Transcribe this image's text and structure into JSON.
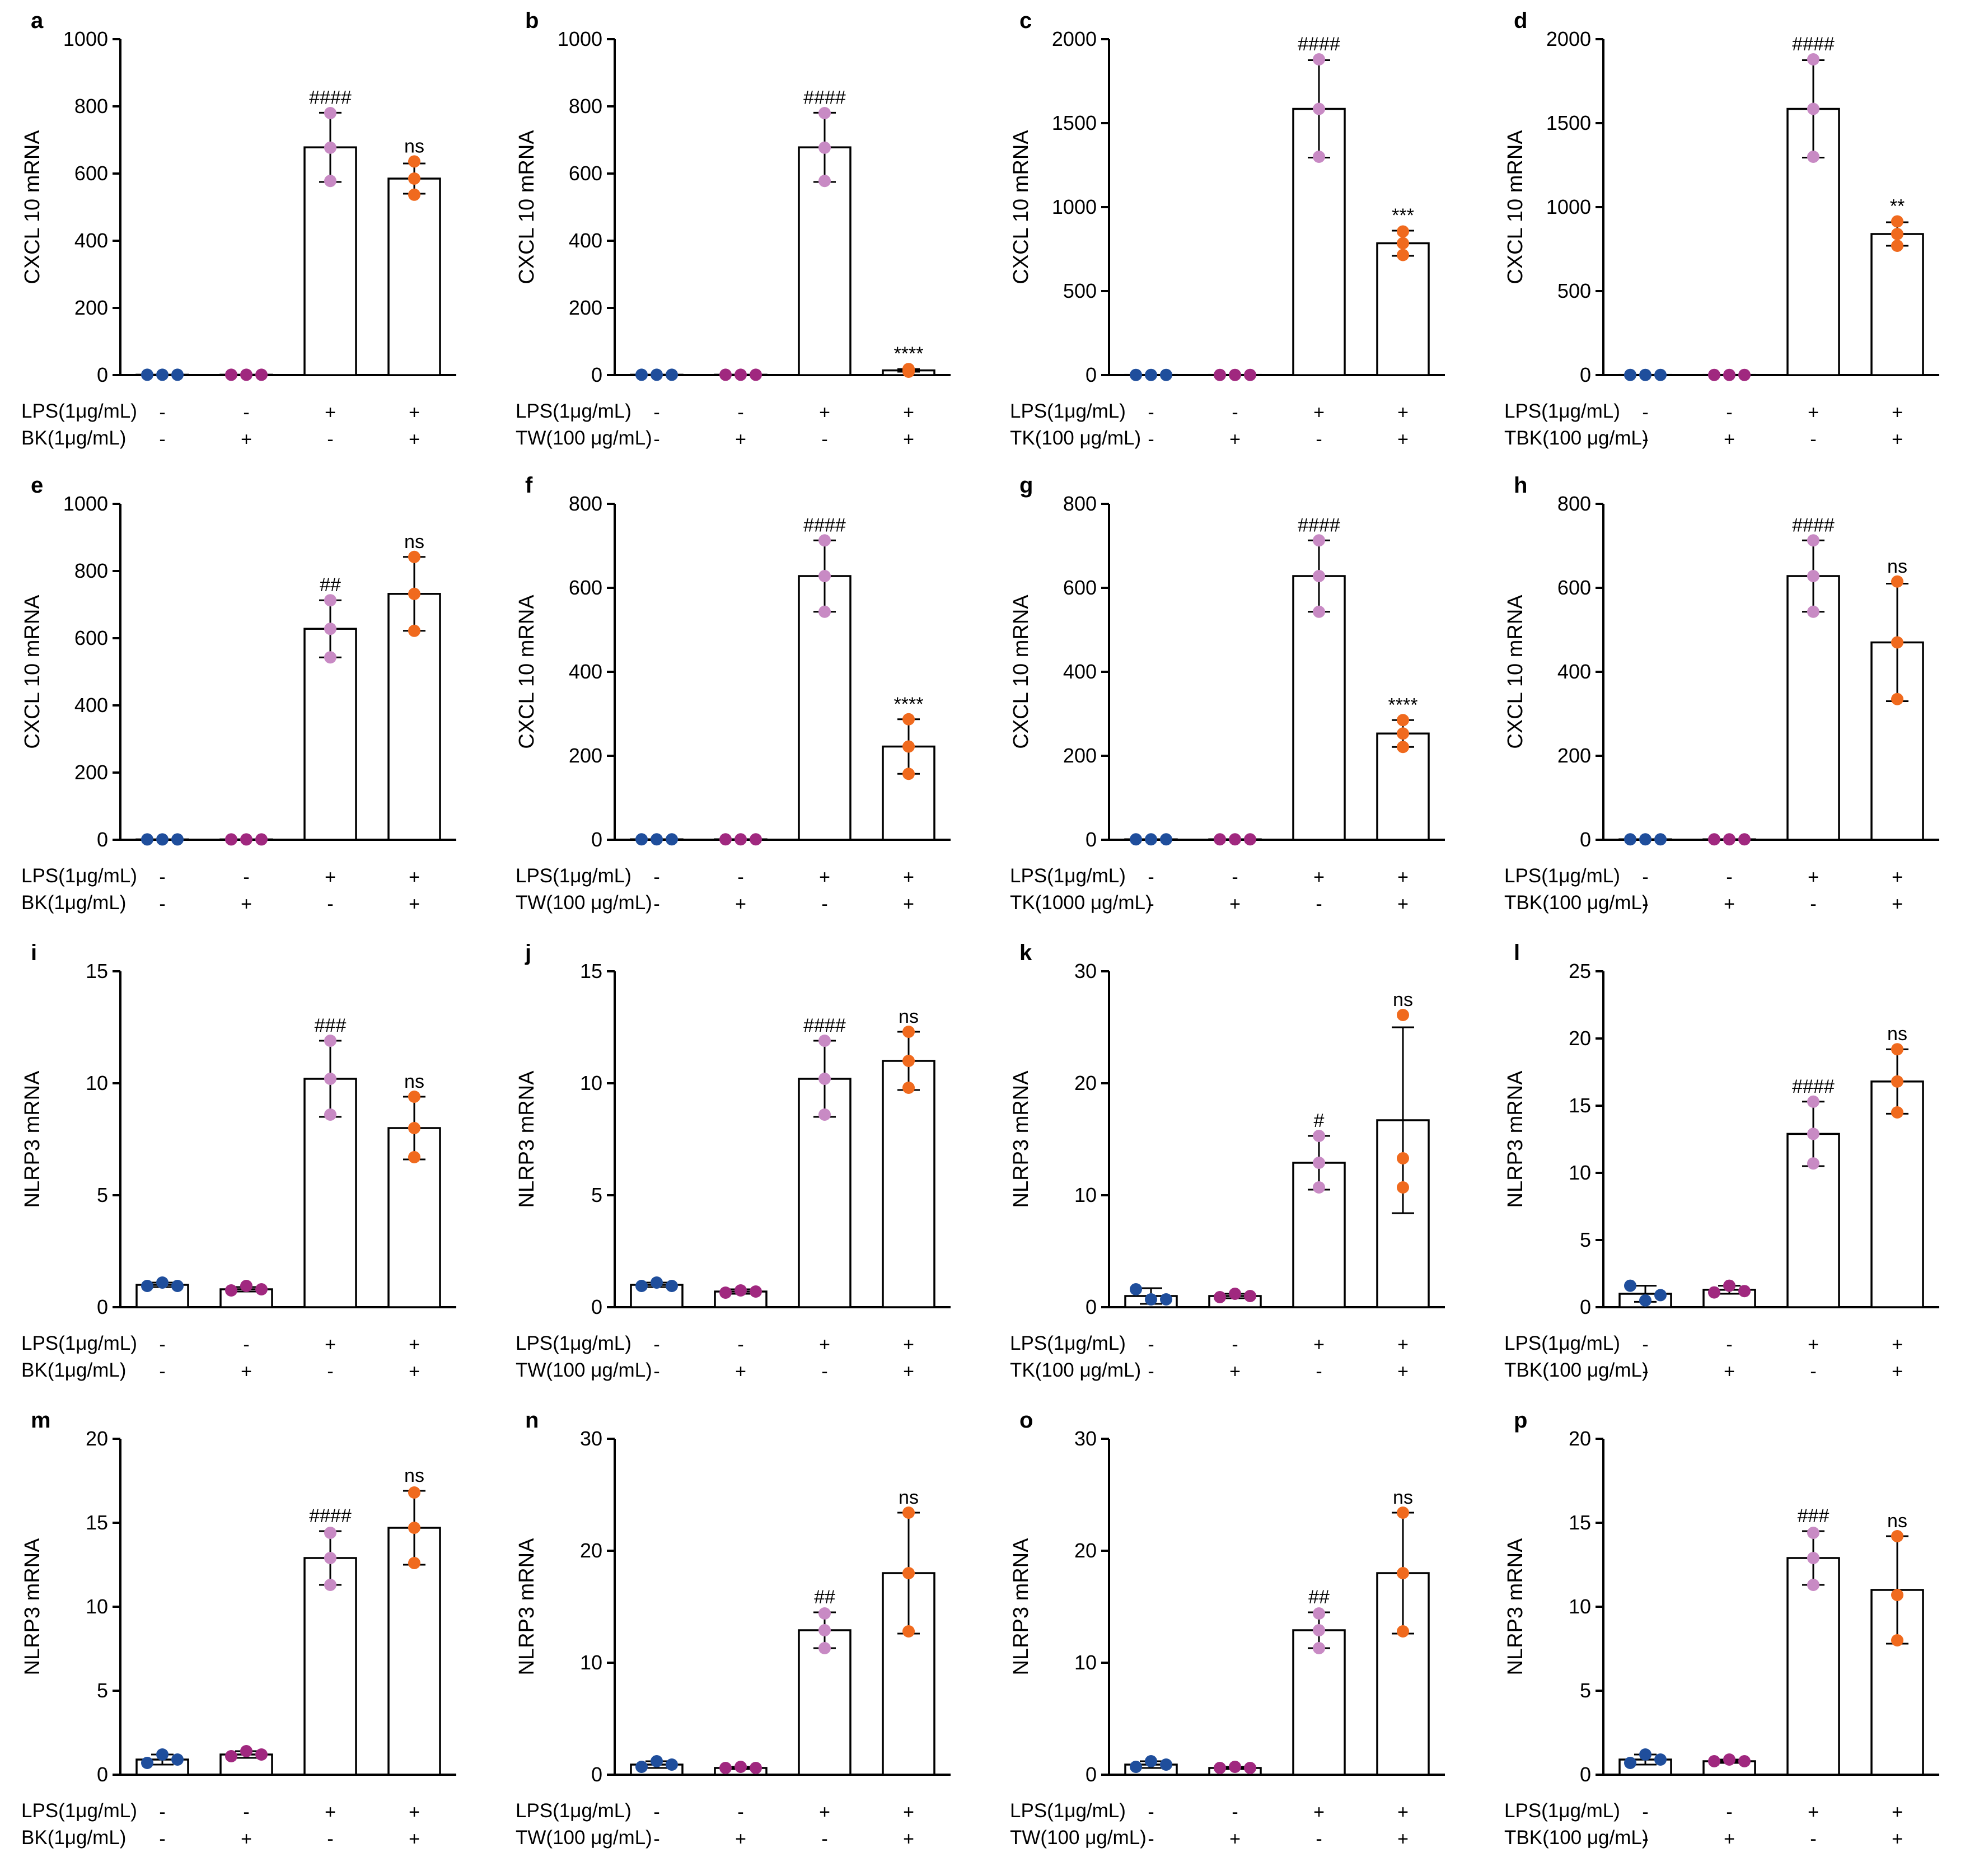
{
  "colors": {
    "ctrl": "#1f4e9c",
    "drug": "#a0287f",
    "lps": "#c88ac4",
    "combo": "#f06a1e",
    "axis": "#000000"
  },
  "chart_data": [
    {
      "letter": "a",
      "type": "bar",
      "ylabel": "CXCL 10  mRNA",
      "ylim": [
        0,
        1000
      ],
      "yticks": [
        0,
        200,
        400,
        600,
        800,
        1000
      ],
      "treatment": "BK(1μg/mL)",
      "lps_label": "LPS(1μg/mL)",
      "lps_signs": [
        "-",
        "-",
        "+",
        "+"
      ],
      "treat_signs": [
        "-",
        "+",
        "-",
        "+"
      ],
      "values": [
        1,
        1,
        678,
        585
      ],
      "errors": [
        0,
        0,
        103,
        45
      ],
      "points": [
        [
          1,
          1,
          1
        ],
        [
          1,
          1,
          1
        ],
        [
          780,
          677,
          578
        ],
        [
          636,
          585,
          537
        ]
      ],
      "significance": [
        "",
        "",
        "####",
        "ns"
      ]
    },
    {
      "letter": "b",
      "type": "bar",
      "ylabel": "CXCL 10  mRNA",
      "ylim": [
        0,
        1000
      ],
      "yticks": [
        0,
        200,
        400,
        600,
        800,
        1000
      ],
      "treatment": "TW(100 μg/mL)",
      "lps_label": "LPS(1μg/mL)",
      "lps_signs": [
        "-",
        "-",
        "+",
        "+"
      ],
      "treat_signs": [
        "-",
        "+",
        "-",
        "+"
      ],
      "values": [
        1,
        1,
        678,
        14
      ],
      "errors": [
        0,
        0,
        103,
        4
      ],
      "points": [
        [
          1,
          1,
          1
        ],
        [
          1,
          1,
          1
        ],
        [
          780,
          677,
          578
        ],
        [
          18,
          14,
          10
        ]
      ],
      "significance": [
        "",
        "",
        "####",
        "****"
      ]
    },
    {
      "letter": "c",
      "type": "bar",
      "ylabel": "CXCL 10  mRNA",
      "ylim": [
        0,
        2000
      ],
      "yticks": [
        0,
        500,
        1000,
        1500,
        2000
      ],
      "treatment": "TK(100 μg/mL)",
      "lps_label": "LPS(1μg/mL)",
      "lps_signs": [
        "-",
        "-",
        "+",
        "+"
      ],
      "treat_signs": [
        "-",
        "+",
        "-",
        "+"
      ],
      "values": [
        1,
        1,
        1585,
        785
      ],
      "errors": [
        0,
        0,
        290,
        75
      ],
      "points": [
        [
          1,
          1,
          1
        ],
        [
          1,
          1,
          1
        ],
        [
          1880,
          1585,
          1300
        ],
        [
          855,
          785,
          715
        ]
      ],
      "significance": [
        "",
        "",
        "####",
        "***"
      ]
    },
    {
      "letter": "d",
      "type": "bar",
      "ylabel": "CXCL 10  mRNA",
      "ylim": [
        0,
        2000
      ],
      "yticks": [
        0,
        500,
        1000,
        1500,
        2000
      ],
      "treatment": "TBK(100 μg/mL)",
      "lps_label": "LPS(1μg/mL)",
      "lps_signs": [
        "-",
        "-",
        "+",
        "+"
      ],
      "treat_signs": [
        "-",
        "+",
        "-",
        "+"
      ],
      "values": [
        1,
        1,
        1585,
        840
      ],
      "errors": [
        0,
        0,
        290,
        70
      ],
      "points": [
        [
          1,
          1,
          1
        ],
        [
          1,
          1,
          1
        ],
        [
          1880,
          1585,
          1300
        ],
        [
          915,
          840,
          770
        ]
      ],
      "significance": [
        "",
        "",
        "####",
        "**"
      ]
    },
    {
      "letter": "e",
      "type": "bar",
      "ylabel": "CXCL 10  mRNA",
      "ylim": [
        0,
        1000
      ],
      "yticks": [
        0,
        200,
        400,
        600,
        800,
        1000
      ],
      "treatment": "BK(1μg/mL)",
      "lps_label": "LPS(1μg/mL)",
      "lps_signs": [
        "-",
        "-",
        "+",
        "+"
      ],
      "treat_signs": [
        "-",
        "+",
        "-",
        "+"
      ],
      "values": [
        1,
        1,
        628,
        732
      ],
      "errors": [
        0,
        0,
        85,
        110
      ],
      "points": [
        [
          1,
          1,
          1
        ],
        [
          1,
          1,
          1
        ],
        [
          713,
          628,
          543
        ],
        [
          842,
          732,
          622
        ]
      ],
      "significance": [
        "",
        "",
        "##",
        "ns"
      ]
    },
    {
      "letter": "f",
      "type": "bar",
      "ylabel": "CXCL 10  mRNA",
      "ylim": [
        0,
        800
      ],
      "yticks": [
        0,
        200,
        400,
        600,
        800
      ],
      "treatment": "TW(100 μg/mL)",
      "lps_label": "LPS(1μg/mL)",
      "lps_signs": [
        "-",
        "-",
        "+",
        "+"
      ],
      "treat_signs": [
        "-",
        "+",
        "-",
        "+"
      ],
      "values": [
        1,
        1,
        628,
        222
      ],
      "errors": [
        0,
        0,
        85,
        65
      ],
      "points": [
        [
          1,
          1,
          1
        ],
        [
          1,
          1,
          1
        ],
        [
          713,
          628,
          543
        ],
        [
          287,
          222,
          157
        ]
      ],
      "significance": [
        "",
        "",
        "####",
        "****"
      ]
    },
    {
      "letter": "g",
      "type": "bar",
      "ylabel": "CXCL 10  mRNA",
      "ylim": [
        0,
        800
      ],
      "yticks": [
        0,
        200,
        400,
        600,
        800
      ],
      "treatment": "TK(1000 μg/mL)",
      "lps_label": "LPS(1μg/mL)",
      "lps_signs": [
        "-",
        "-",
        "+",
        "+"
      ],
      "treat_signs": [
        "-",
        "+",
        "-",
        "+"
      ],
      "values": [
        1,
        1,
        628,
        253
      ],
      "errors": [
        0,
        0,
        85,
        32
      ],
      "points": [
        [
          1,
          1,
          1
        ],
        [
          1,
          1,
          1
        ],
        [
          713,
          628,
          543
        ],
        [
          285,
          253,
          221
        ]
      ],
      "significance": [
        "",
        "",
        "####",
        "****"
      ]
    },
    {
      "letter": "h",
      "type": "bar",
      "ylabel": "CXCL 10  mRNA",
      "ylim": [
        0,
        800
      ],
      "yticks": [
        0,
        200,
        400,
        600,
        800
      ],
      "treatment": "TBK(100 μg/mL)",
      "lps_label": "LPS(1μg/mL)",
      "lps_signs": [
        "-",
        "-",
        "+",
        "+"
      ],
      "treat_signs": [
        "-",
        "+",
        "-",
        "+"
      ],
      "values": [
        1,
        1,
        628,
        470
      ],
      "errors": [
        0,
        0,
        85,
        140
      ],
      "points": [
        [
          1,
          1,
          1
        ],
        [
          1,
          1,
          1
        ],
        [
          713,
          628,
          543
        ],
        [
          615,
          470,
          335
        ]
      ],
      "significance": [
        "",
        "",
        "####",
        "ns"
      ]
    },
    {
      "letter": "i",
      "type": "bar",
      "ylabel": "NLRP3 mRNA",
      "ylim": [
        0,
        15
      ],
      "yticks": [
        0,
        5,
        10,
        15
      ],
      "treatment": "BK(1μg/mL)",
      "lps_label": "LPS(1μg/mL)",
      "lps_signs": [
        "-",
        "-",
        "+",
        "+"
      ],
      "treat_signs": [
        "-",
        "+",
        "-",
        "+"
      ],
      "values": [
        1.0,
        0.8,
        10.2,
        8.0
      ],
      "errors": [
        0.1,
        0.1,
        1.7,
        1.4
      ],
      "points": [
        [
          0.95,
          1.1,
          0.95
        ],
        [
          0.75,
          0.95,
          0.8
        ],
        [
          11.9,
          10.2,
          8.6
        ],
        [
          9.4,
          8.0,
          6.7
        ]
      ],
      "significance": [
        "",
        "",
        "###",
        "ns"
      ]
    },
    {
      "letter": "j",
      "type": "bar",
      "ylabel": "NLRP3 mRNA",
      "ylim": [
        0,
        15
      ],
      "yticks": [
        0,
        5,
        10,
        15
      ],
      "treatment": "TW(100 μg/mL)",
      "lps_label": "LPS(1μg/mL)",
      "lps_signs": [
        "-",
        "-",
        "+",
        "+"
      ],
      "treat_signs": [
        "-",
        "+",
        "-",
        "+"
      ],
      "values": [
        1.0,
        0.7,
        10.2,
        11.0
      ],
      "errors": [
        0.1,
        0.1,
        1.7,
        1.3
      ],
      "points": [
        [
          0.95,
          1.1,
          0.95
        ],
        [
          0.65,
          0.75,
          0.7
        ],
        [
          11.9,
          10.2,
          8.6
        ],
        [
          12.3,
          11.0,
          9.8
        ]
      ],
      "significance": [
        "",
        "",
        "####",
        "ns"
      ]
    },
    {
      "letter": "k",
      "type": "bar",
      "ylabel": "NLRP3 mRNA",
      "ylim": [
        0,
        30
      ],
      "yticks": [
        0,
        10,
        20,
        30
      ],
      "treatment": "TK(100 μg/mL)",
      "lps_label": "LPS(1μg/mL)",
      "lps_signs": [
        "-",
        "-",
        "+",
        "+"
      ],
      "treat_signs": [
        "-",
        "+",
        "-",
        "+"
      ],
      "values": [
        1.0,
        1.0,
        12.9,
        16.7
      ],
      "errors": [
        0.7,
        0.2,
        2.4,
        8.3
      ],
      "points": [
        [
          1.6,
          0.7,
          0.7
        ],
        [
          0.9,
          1.2,
          1.0
        ],
        [
          15.3,
          12.9,
          10.7
        ],
        [
          26.1,
          13.3,
          10.7
        ]
      ],
      "significance": [
        "",
        "",
        "#",
        "ns"
      ]
    },
    {
      "letter": "l",
      "type": "bar",
      "ylabel": "NLRP3 mRNA",
      "ylim": [
        0,
        25
      ],
      "yticks": [
        0,
        5,
        10,
        15,
        20,
        25
      ],
      "treatment": "TBK(100 μg/mL)",
      "lps_label": "LPS(1μg/mL)",
      "lps_signs": [
        "-",
        "-",
        "+",
        "+"
      ],
      "treat_signs": [
        "-",
        "+",
        "-",
        "+"
      ],
      "values": [
        1.0,
        1.3,
        12.9,
        16.8
      ],
      "errors": [
        0.6,
        0.3,
        2.4,
        2.4
      ],
      "points": [
        [
          1.6,
          0.5,
          0.9
        ],
        [
          1.1,
          1.6,
          1.2
        ],
        [
          15.3,
          12.9,
          10.7
        ],
        [
          19.2,
          16.8,
          14.5
        ]
      ],
      "significance": [
        "",
        "",
        "####",
        "ns"
      ]
    },
    {
      "letter": "m",
      "type": "bar",
      "ylabel": "NLRP3 mRNA",
      "ylim": [
        0,
        20
      ],
      "yticks": [
        0,
        5,
        10,
        15,
        20
      ],
      "treatment": "BK(1μg/mL)",
      "lps_label": "LPS(1μg/mL)",
      "lps_signs": [
        "-",
        "-",
        "+",
        "+"
      ],
      "treat_signs": [
        "-",
        "+",
        "-",
        "+"
      ],
      "values": [
        0.9,
        1.2,
        12.9,
        14.7
      ],
      "errors": [
        0.3,
        0.2,
        1.6,
        2.2
      ],
      "points": [
        [
          0.7,
          1.2,
          0.9
        ],
        [
          1.1,
          1.4,
          1.2
        ],
        [
          14.4,
          12.9,
          11.3
        ],
        [
          16.8,
          14.7,
          12.6
        ]
      ],
      "significance": [
        "",
        "",
        "####",
        "ns"
      ]
    },
    {
      "letter": "n",
      "type": "bar",
      "ylabel": "NLRP3 mRNA",
      "ylim": [
        0,
        30
      ],
      "yticks": [
        0,
        10,
        20,
        30
      ],
      "treatment": "TW(100 μg/mL)",
      "lps_label": "LPS(1μg/mL)",
      "lps_signs": [
        "-",
        "-",
        "+",
        "+"
      ],
      "treat_signs": [
        "-",
        "+",
        "-",
        "+"
      ],
      "values": [
        0.9,
        0.6,
        12.9,
        18.0
      ],
      "errors": [
        0.3,
        0.1,
        1.6,
        5.4
      ],
      "points": [
        [
          0.7,
          1.2,
          0.9
        ],
        [
          0.6,
          0.7,
          0.6
        ],
        [
          14.4,
          12.9,
          11.3
        ],
        [
          23.4,
          18.0,
          12.8
        ]
      ],
      "significance": [
        "",
        "",
        "##",
        "ns"
      ]
    },
    {
      "letter": "o",
      "type": "bar",
      "ylabel": "NLRP3 mRNA",
      "ylim": [
        0,
        30
      ],
      "yticks": [
        0,
        10,
        20,
        30
      ],
      "treatment": "TW(100 μg/mL)",
      "lps_label": "LPS(1μg/mL)",
      "lps_signs": [
        "-",
        "-",
        "+",
        "+"
      ],
      "treat_signs": [
        "-",
        "+",
        "-",
        "+"
      ],
      "values": [
        0.9,
        0.6,
        12.9,
        18.0
      ],
      "errors": [
        0.3,
        0.1,
        1.6,
        5.4
      ],
      "points": [
        [
          0.7,
          1.2,
          0.9
        ],
        [
          0.6,
          0.7,
          0.6
        ],
        [
          14.4,
          12.9,
          11.3
        ],
        [
          23.4,
          18.0,
          12.8
        ]
      ],
      "significance": [
        "",
        "",
        "##",
        "ns"
      ]
    },
    {
      "letter": "p",
      "type": "bar",
      "ylabel": "NLRP3 mRNA",
      "ylim": [
        0,
        20
      ],
      "yticks": [
        0,
        5,
        10,
        15,
        20
      ],
      "treatment": "TBK(100 μg/mL)",
      "lps_label": "LPS(1μg/mL)",
      "lps_signs": [
        "-",
        "-",
        "+",
        "+"
      ],
      "treat_signs": [
        "-",
        "+",
        "-",
        "+"
      ],
      "values": [
        0.9,
        0.8,
        12.9,
        11.0
      ],
      "errors": [
        0.3,
        0.1,
        1.6,
        3.2
      ],
      "points": [
        [
          0.7,
          1.2,
          0.9
        ],
        [
          0.8,
          0.9,
          0.8
        ],
        [
          14.4,
          12.9,
          11.3
        ],
        [
          14.2,
          10.7,
          8.0
        ]
      ],
      "significance": [
        "",
        "",
        "###",
        "ns"
      ]
    }
  ]
}
